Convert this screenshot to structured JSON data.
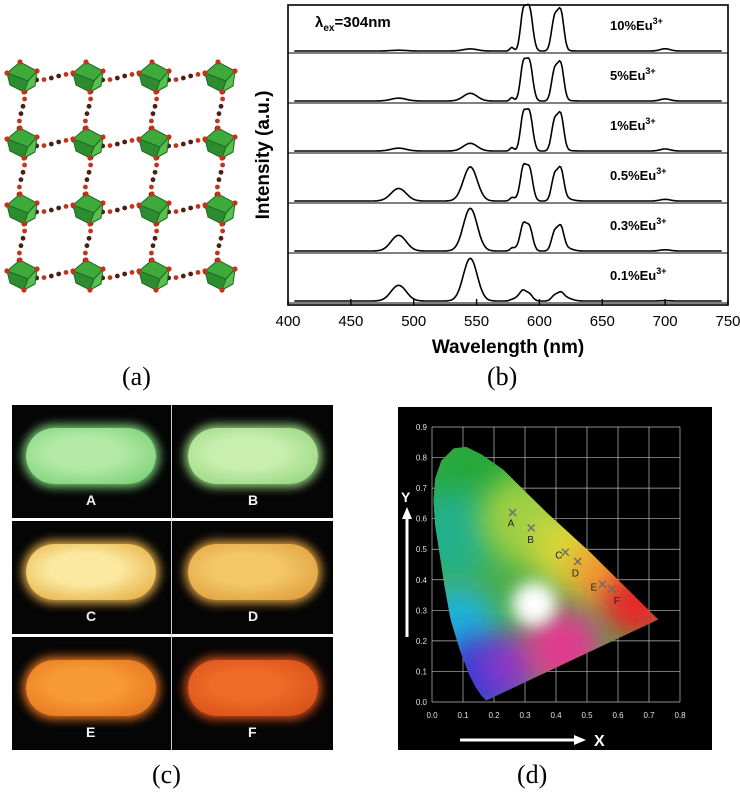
{
  "panels": {
    "a": {
      "label": "(a)"
    },
    "b": {
      "label": "(b)"
    },
    "c": {
      "label": "(c)"
    },
    "d": {
      "label": "(d)"
    }
  },
  "chart_data": [
    {
      "type": "line",
      "panel": "b",
      "title": "",
      "xlabel": "Wavelength (nm)",
      "ylabel": "Intensity (a.u.)",
      "xlim": [
        400,
        750
      ],
      "xticks": [
        400,
        450,
        500,
        550,
        600,
        650,
        700,
        750
      ],
      "excitation": {
        "prefix": "λ",
        "sub": "ex",
        "suffix": "=304nm"
      },
      "series": [
        {
          "name": "10%Eu3+",
          "label_main": "10%Eu",
          "label_sup": "3+",
          "tb_green": 0.05,
          "eu_red": 1.0
        },
        {
          "name": "5%Eu3+",
          "label_main": "5%Eu",
          "label_sup": "3+",
          "tb_green": 0.18,
          "eu_red": 0.92
        },
        {
          "name": "1%Eu3+",
          "label_main": "1%Eu",
          "label_sup": "3+",
          "tb_green": 0.18,
          "eu_red": 0.9
        },
        {
          "name": "0.5%Eu3+",
          "label_main": "0.5%Eu",
          "label_sup": "3+",
          "tb_green": 0.8,
          "eu_red": 0.75
        },
        {
          "name": "0.3%Eu3+",
          "label_main": "0.3%Eu",
          "label_sup": "3+",
          "tb_green": 1.0,
          "eu_red": 0.55
        },
        {
          "name": "0.1%Eu3+",
          "label_main": "0.1%Eu",
          "label_sup": "3+",
          "tb_green": 1.0,
          "eu_red": 0.15
        }
      ]
    },
    {
      "type": "scatter",
      "panel": "d",
      "xlabel": "X",
      "ylabel": "Y",
      "xlim": [
        0.0,
        0.8
      ],
      "ylim": [
        0.0,
        0.9
      ],
      "xticks": [
        "0.0",
        "0.1",
        "0.2",
        "0.3",
        "0.4",
        "0.5",
        "0.6",
        "0.7",
        "0.8"
      ],
      "yticks": [
        "0.0",
        "0.1",
        "0.2",
        "0.3",
        "0.4",
        "0.5",
        "0.6",
        "0.7",
        "0.8",
        "0.9"
      ],
      "points": [
        {
          "name": "A",
          "x": 0.26,
          "y": 0.62
        },
        {
          "name": "B",
          "x": 0.32,
          "y": 0.57
        },
        {
          "name": "C",
          "x": 0.43,
          "y": 0.49
        },
        {
          "name": "D",
          "x": 0.47,
          "y": 0.46
        },
        {
          "name": "E",
          "x": 0.55,
          "y": 0.385
        },
        {
          "name": "F",
          "x": 0.58,
          "y": 0.37
        }
      ]
    }
  ],
  "samples": [
    {
      "label": "A",
      "glow": "#7ed27a",
      "core": "#b4eaa6"
    },
    {
      "label": "B",
      "glow": "#9ad883",
      "core": "#c8efae"
    },
    {
      "label": "C",
      "glow": "#e8b24a",
      "core": "#fbe9a0"
    },
    {
      "label": "D",
      "glow": "#e0a040",
      "core": "#f3c766"
    },
    {
      "label": "E",
      "glow": "#e8761f",
      "core": "#f79a35"
    },
    {
      "label": "F",
      "glow": "#d8501a",
      "core": "#ee6a26"
    }
  ],
  "colors": {
    "mof_green": "#3faa3c",
    "mof_dark": "#1d6b22",
    "linker": "#4a1f14",
    "oxygen": "#c4331c"
  }
}
